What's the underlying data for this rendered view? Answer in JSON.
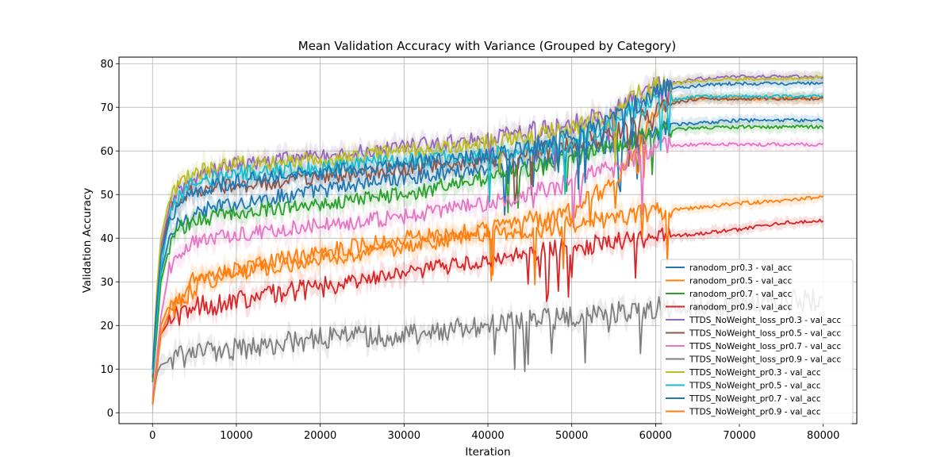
{
  "chart_data": {
    "type": "line",
    "title": "Mean Validation Accuracy with Variance (Grouped by Category)",
    "xlabel": "Iteration",
    "ylabel": "Validation Accuracy",
    "xlim": [
      -4000,
      84000
    ],
    "ylim": [
      -2.5,
      81.5
    ],
    "xticks": [
      0,
      10000,
      20000,
      30000,
      40000,
      50000,
      60000,
      70000,
      80000
    ],
    "xtick_labels": [
      "0",
      "10000",
      "20000",
      "30000",
      "40000",
      "50000",
      "60000",
      "70000",
      "80000"
    ],
    "yticks": [
      0,
      10,
      20,
      30,
      40,
      50,
      60,
      70,
      80
    ],
    "ytick_labels": [
      "0",
      "10",
      "20",
      "30",
      "40",
      "50",
      "60",
      "70",
      "80"
    ],
    "grid": true,
    "legend_position": "lower-right",
    "series": [
      {
        "name": "ranodom_pr0.3 - val_acc",
        "color": "#1f77b4",
        "points": [
          [
            0,
            8
          ],
          [
            500,
            20
          ],
          [
            1000,
            32
          ],
          [
            2000,
            40
          ],
          [
            3000,
            43
          ],
          [
            5000,
            46
          ],
          [
            10000,
            48
          ],
          [
            20000,
            51
          ],
          [
            30000,
            54
          ],
          [
            40000,
            56
          ],
          [
            50000,
            59
          ],
          [
            55000,
            62
          ],
          [
            60000,
            64
          ],
          [
            62000,
            66
          ],
          [
            70000,
            67
          ],
          [
            80000,
            67
          ]
        ]
      },
      {
        "name": "ranodom_pr0.5 - val_acc",
        "color": "#ff7f0e",
        "points": [
          [
            0,
            2
          ],
          [
            1000,
            20
          ],
          [
            2000,
            25
          ],
          [
            5000,
            30
          ],
          [
            10000,
            33
          ],
          [
            20000,
            37
          ],
          [
            30000,
            40
          ],
          [
            40000,
            42
          ],
          [
            50000,
            46
          ],
          [
            55000,
            53
          ],
          [
            58000,
            62
          ],
          [
            60000,
            70
          ],
          [
            63000,
            72
          ],
          [
            70000,
            72
          ],
          [
            80000,
            72
          ]
        ]
      },
      {
        "name": "ranodom_pr0.7 - val_acc",
        "color": "#2ca02c",
        "points": [
          [
            0,
            7
          ],
          [
            500,
            18
          ],
          [
            1000,
            30
          ],
          [
            2000,
            38
          ],
          [
            3000,
            42
          ],
          [
            5000,
            44
          ],
          [
            10000,
            46
          ],
          [
            20000,
            48
          ],
          [
            30000,
            50
          ],
          [
            40000,
            54
          ],
          [
            45000,
            56
          ],
          [
            50000,
            58
          ],
          [
            55000,
            61
          ],
          [
            60000,
            64
          ],
          [
            62000,
            65
          ],
          [
            70000,
            65.5
          ],
          [
            80000,
            65.5
          ]
        ]
      },
      {
        "name": "ranodom_pr0.9 - val_acc",
        "color": "#d62728",
        "points": [
          [
            0,
            2
          ],
          [
            1000,
            18
          ],
          [
            2000,
            21
          ],
          [
            5000,
            24
          ],
          [
            10000,
            26
          ],
          [
            20000,
            29
          ],
          [
            30000,
            32
          ],
          [
            40000,
            35
          ],
          [
            50000,
            38
          ],
          [
            60000,
            40
          ],
          [
            70000,
            42
          ],
          [
            75000,
            43.5
          ],
          [
            80000,
            44
          ]
        ]
      },
      {
        "name": "TTDS_NoWeight_loss_pr0.3 - val_acc",
        "color": "#9467bd",
        "points": [
          [
            0,
            10
          ],
          [
            500,
            25
          ],
          [
            1000,
            38
          ],
          [
            2000,
            47
          ],
          [
            3000,
            51
          ],
          [
            5000,
            54
          ],
          [
            10000,
            57
          ],
          [
            20000,
            59
          ],
          [
            30000,
            61
          ],
          [
            40000,
            63
          ],
          [
            50000,
            66
          ],
          [
            55000,
            69
          ],
          [
            57000,
            72
          ],
          [
            60000,
            75
          ],
          [
            65000,
            76.5
          ],
          [
            70000,
            77
          ],
          [
            80000,
            77
          ]
        ]
      },
      {
        "name": "TTDS_NoWeight_loss_pr0.5 - val_acc",
        "color": "#8c564b",
        "points": [
          [
            0,
            8
          ],
          [
            500,
            24
          ],
          [
            1000,
            36
          ],
          [
            2000,
            46
          ],
          [
            3000,
            49
          ],
          [
            5000,
            51
          ],
          [
            10000,
            52
          ],
          [
            20000,
            54
          ],
          [
            30000,
            56
          ],
          [
            40000,
            58
          ],
          [
            50000,
            61
          ],
          [
            55000,
            64
          ],
          [
            60000,
            69
          ],
          [
            62000,
            71
          ],
          [
            65000,
            72
          ],
          [
            80000,
            72
          ]
        ]
      },
      {
        "name": "TTDS_NoWeight_loss_pr0.7 - val_acc",
        "color": "#e377c2",
        "points": [
          [
            0,
            3
          ],
          [
            1000,
            22
          ],
          [
            2000,
            33
          ],
          [
            3000,
            36
          ],
          [
            5000,
            39
          ],
          [
            10000,
            41
          ],
          [
            20000,
            43
          ],
          [
            30000,
            45
          ],
          [
            40000,
            48
          ],
          [
            45000,
            50
          ],
          [
            50000,
            53
          ],
          [
            55000,
            56
          ],
          [
            58000,
            59
          ],
          [
            60000,
            61
          ],
          [
            65000,
            61.5
          ],
          [
            70000,
            61.5
          ],
          [
            80000,
            61.5
          ]
        ]
      },
      {
        "name": "TTDS_NoWeight_loss_pr0.9 - val_acc",
        "color": "#7f7f7f",
        "points": [
          [
            0,
            2
          ],
          [
            500,
            9
          ],
          [
            1000,
            11
          ],
          [
            3000,
            12.5
          ],
          [
            5000,
            13.5
          ],
          [
            10000,
            14.5
          ],
          [
            20000,
            17
          ],
          [
            30000,
            18
          ],
          [
            40000,
            20
          ],
          [
            50000,
            22
          ],
          [
            58000,
            23.5
          ],
          [
            60000,
            24
          ],
          [
            65000,
            24.5
          ],
          [
            70000,
            25
          ],
          [
            80000,
            26
          ]
        ]
      },
      {
        "name": "TTDS_NoWeight_pr0.3 - val_acc",
        "color": "#bcbd22",
        "points": [
          [
            0,
            10
          ],
          [
            500,
            28
          ],
          [
            1000,
            40
          ],
          [
            2000,
            49
          ],
          [
            3000,
            52
          ],
          [
            5000,
            55
          ],
          [
            10000,
            57
          ],
          [
            20000,
            58
          ],
          [
            30000,
            60
          ],
          [
            40000,
            62
          ],
          [
            50000,
            65
          ],
          [
            55000,
            68
          ],
          [
            57000,
            72
          ],
          [
            60000,
            75
          ],
          [
            65000,
            76
          ],
          [
            70000,
            76.5
          ],
          [
            80000,
            76.8
          ]
        ]
      },
      {
        "name": "TTDS_NoWeight_pr0.5 - val_acc",
        "color": "#17becf",
        "points": [
          [
            0,
            9
          ],
          [
            500,
            22
          ],
          [
            1000,
            33
          ],
          [
            2000,
            45
          ],
          [
            3000,
            49
          ],
          [
            5000,
            53
          ],
          [
            10000,
            55
          ],
          [
            20000,
            56
          ],
          [
            30000,
            58
          ],
          [
            40000,
            59
          ],
          [
            50000,
            62
          ],
          [
            55000,
            66
          ],
          [
            57000,
            69
          ],
          [
            60000,
            71
          ],
          [
            65000,
            72.5
          ],
          [
            80000,
            72.5
          ]
        ]
      },
      {
        "name": "TTDS_NoWeight_pr0.7 - val_acc",
        "color": "#1f77b4",
        "points": [
          [
            0,
            10
          ],
          [
            500,
            25
          ],
          [
            1000,
            36
          ],
          [
            2000,
            44
          ],
          [
            3000,
            48
          ],
          [
            5000,
            51
          ],
          [
            10000,
            53
          ],
          [
            20000,
            55
          ],
          [
            30000,
            57
          ],
          [
            40000,
            59
          ],
          [
            50000,
            63
          ],
          [
            55000,
            68
          ],
          [
            58000,
            71
          ],
          [
            60000,
            74
          ],
          [
            65000,
            75
          ],
          [
            70000,
            75.5
          ],
          [
            80000,
            75.5
          ]
        ]
      },
      {
        "name": "TTDS_NoWeight_pr0.9 - val_acc",
        "color": "#ff7f0e",
        "points": [
          [
            0,
            2
          ],
          [
            1000,
            18
          ],
          [
            2000,
            23
          ],
          [
            5000,
            29
          ],
          [
            10000,
            32
          ],
          [
            20000,
            35
          ],
          [
            30000,
            38
          ],
          [
            40000,
            41
          ],
          [
            50000,
            43
          ],
          [
            55000,
            45
          ],
          [
            60000,
            46
          ],
          [
            65000,
            47
          ],
          [
            70000,
            48
          ],
          [
            75000,
            48.5
          ],
          [
            80000,
            49.5
          ]
        ]
      }
    ]
  }
}
